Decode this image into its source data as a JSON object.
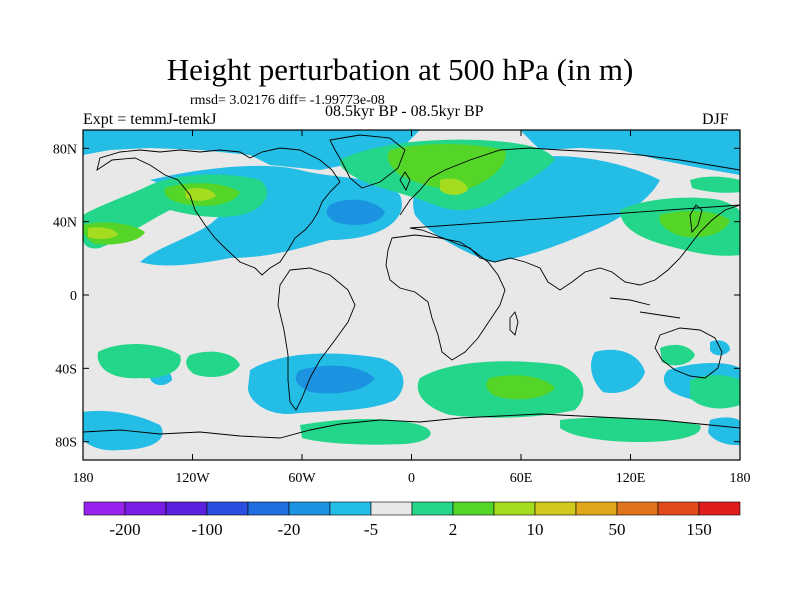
{
  "title": "Height perturbation at 500 hPa (in m)",
  "stats_line": "rmsd= 3.02176 diff= -1.99773e-08",
  "experiment": "Expt = temmJ-temkJ",
  "period": "08.5kyr BP - 08.5kyr BP",
  "season": "DJF",
  "axes": {
    "lat_ticks": [
      {
        "label": "80N",
        "lat": 80
      },
      {
        "label": "40N",
        "lat": 40
      },
      {
        "label": "0",
        "lat": 0
      },
      {
        "label": "40S",
        "lat": -40
      },
      {
        "label": "80S",
        "lat": -80
      }
    ],
    "lon_ticks": [
      {
        "label": "180",
        "lon": -180
      },
      {
        "label": "120W",
        "lon": -120
      },
      {
        "label": "60W",
        "lon": -60
      },
      {
        "label": "0",
        "lon": 0
      },
      {
        "label": "60E",
        "lon": 60
      },
      {
        "label": "120E",
        "lon": 120
      },
      {
        "label": "180",
        "lon": 180
      }
    ],
    "lon_range": [
      -180,
      180
    ],
    "lat_range": [
      -90,
      90
    ]
  },
  "colorbar": {
    "colors": [
      "#9a22ee",
      "#7a1ee6",
      "#5a22dd",
      "#2d4fe0",
      "#1f6fe0",
      "#1c93e0",
      "#24bde6",
      "#e8e8e8",
      "#24d68a",
      "#55d528",
      "#a5dc20",
      "#d3c81c",
      "#e0a61c",
      "#e0741c",
      "#e04a1c",
      "#e01c1c"
    ],
    "labels": [
      {
        "text": "-200",
        "after_bin": 1
      },
      {
        "text": "-100",
        "after_bin": 3
      },
      {
        "text": "-20",
        "after_bin": 5
      },
      {
        "text": "-5",
        "after_bin": 7
      },
      {
        "text": "2",
        "after_bin": 9
      },
      {
        "text": "10",
        "after_bin": 11
      },
      {
        "text": "50",
        "after_bin": 13
      },
      {
        "text": "150",
        "after_bin": 15
      }
    ]
  },
  "field_colors": {
    "background": "#e8e8e8",
    "neg_light": "#24bde6",
    "neg_mid": "#1c93e0",
    "pos_light": "#24d68a",
    "pos_mid": "#55d528",
    "pos_high": "#a5dc20"
  }
}
